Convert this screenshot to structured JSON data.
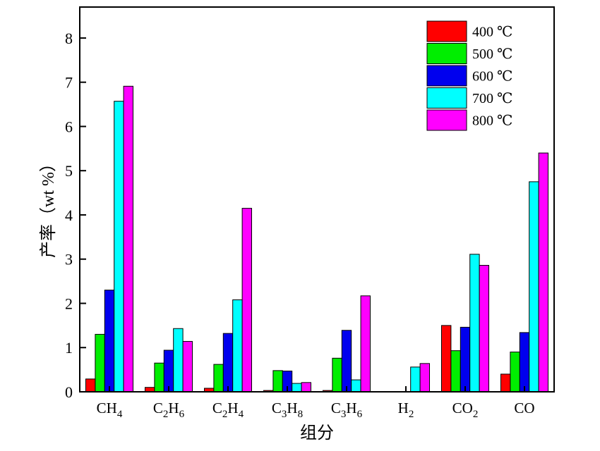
{
  "chart_data": {
    "type": "bar",
    "title": "",
    "xlabel": "组分",
    "ylabel": "产率（wt %）",
    "ylim": [
      0,
      8.7
    ],
    "yticks": [
      0,
      1,
      2,
      3,
      4,
      5,
      6,
      7,
      8
    ],
    "legend_position": "top-right",
    "grid": false,
    "categories": [
      {
        "base": "CH",
        "sub": "4",
        "base2": "",
        "sub2": ""
      },
      {
        "base": "C",
        "sub": "2",
        "base2": "H",
        "sub2": "6"
      },
      {
        "base": "C",
        "sub": "2",
        "base2": "H",
        "sub2": "4"
      },
      {
        "base": "C",
        "sub": "3",
        "base2": "H",
        "sub2": "8"
      },
      {
        "base": "C",
        "sub": "3",
        "base2": "H",
        "sub2": "6"
      },
      {
        "base": "H",
        "sub": "2",
        "base2": "",
        "sub2": ""
      },
      {
        "base": "CO",
        "sub": "2",
        "base2": "",
        "sub2": ""
      },
      {
        "base": "CO",
        "sub": "",
        "base2": "",
        "sub2": ""
      }
    ],
    "series": [
      {
        "name": "400 ℃",
        "color": "#ff0000",
        "values": [
          0.29,
          0.1,
          0.08,
          0.03,
          0.03,
          0.0,
          1.5,
          0.4
        ]
      },
      {
        "name": "500 ℃",
        "color": "#00ee00",
        "values": [
          1.3,
          0.65,
          0.62,
          0.48,
          0.76,
          0.0,
          0.93,
          0.9
        ]
      },
      {
        "name": "600 ℃",
        "color": "#0000ee",
        "values": [
          2.3,
          0.94,
          1.32,
          0.47,
          1.39,
          0.0,
          1.46,
          1.34
        ]
      },
      {
        "name": "700 ℃",
        "color": "#00ffff",
        "values": [
          6.57,
          1.43,
          2.08,
          0.19,
          0.27,
          0.56,
          3.11,
          4.75
        ]
      },
      {
        "name": "800 ℃",
        "color": "#ff00ff",
        "values": [
          6.91,
          1.14,
          4.15,
          0.21,
          2.17,
          0.64,
          2.86,
          5.4
        ]
      }
    ]
  }
}
